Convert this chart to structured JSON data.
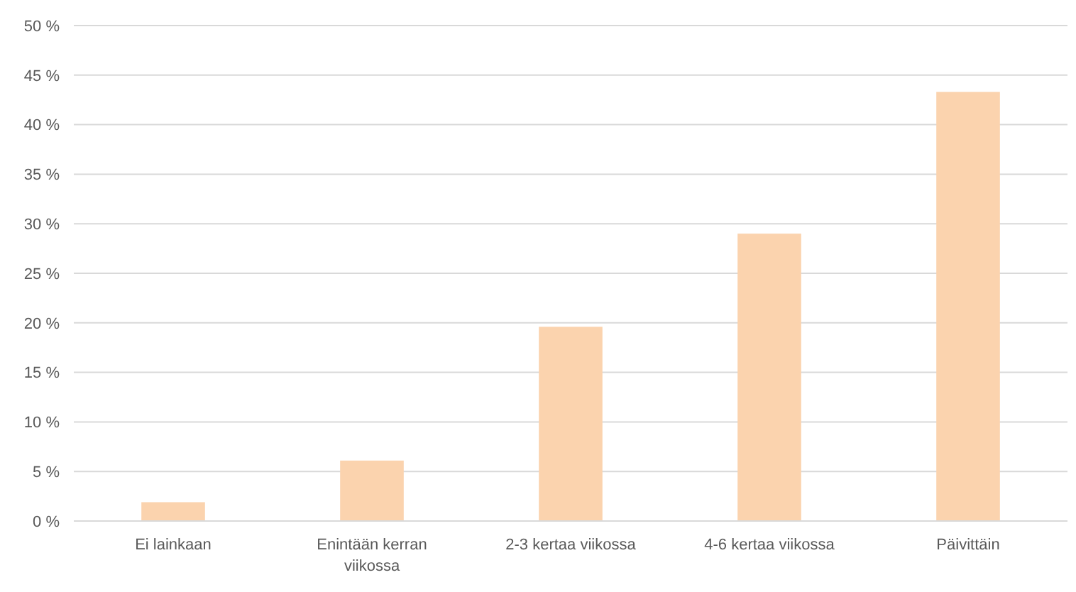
{
  "chart_data": {
    "type": "bar",
    "categories": [
      "Ei lainkaan",
      "Enintään kerran viikossa",
      "2-3 kertaa viikossa",
      "4-6 kertaa viikossa",
      "Päivittäin"
    ],
    "values": [
      1.9,
      6.1,
      19.6,
      29,
      43.3
    ],
    "color": "#fbd3ae",
    "ylim": [
      0,
      50
    ],
    "yticks": [
      {
        "value": 0,
        "label": "0 %"
      },
      {
        "value": 5,
        "label": "5 %"
      },
      {
        "value": 10,
        "label": "10 %"
      },
      {
        "value": 15,
        "label": "15 %"
      },
      {
        "value": 20,
        "label": "20 %"
      },
      {
        "value": 25,
        "label": "25 %"
      },
      {
        "value": 30,
        "label": "30 %"
      },
      {
        "value": 35,
        "label": "35 %"
      },
      {
        "value": 40,
        "label": "40 %"
      },
      {
        "value": 45,
        "label": "45 %"
      },
      {
        "value": 50,
        "label": "50 %"
      }
    ],
    "grid": "y"
  }
}
